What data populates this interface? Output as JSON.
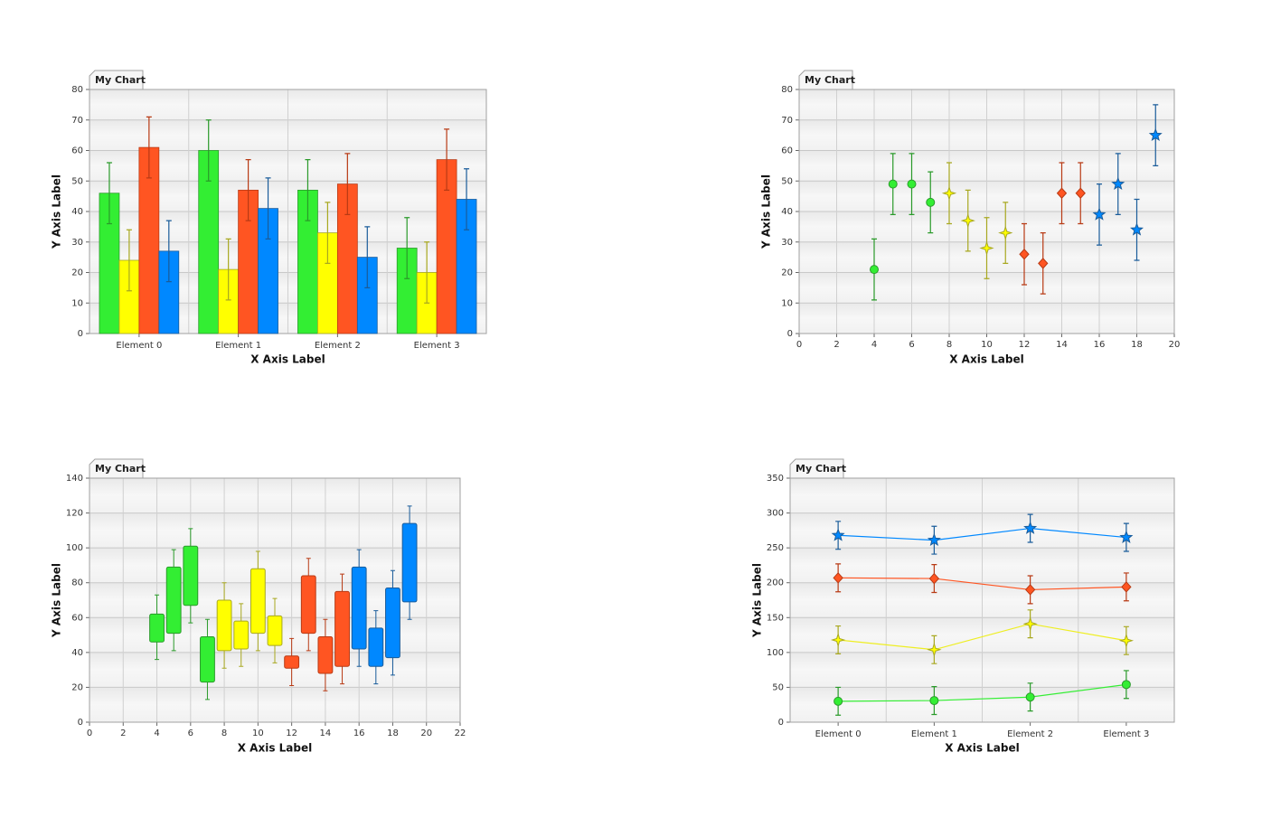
{
  "chart_data": [
    {
      "type": "bar",
      "title": "My Chart",
      "x_label": "X Axis Label",
      "y_label": "Y Axis Label",
      "categories": [
        "Element 0",
        "Element 1",
        "Element 2",
        "Element 3"
      ],
      "ylim": [
        0,
        80
      ],
      "yticks": [
        0,
        10,
        20,
        30,
        40,
        50,
        60,
        70,
        80
      ],
      "grid": true,
      "series": [
        {
          "color": "#33ee33",
          "edge_color": "#2a9a2a",
          "values": [
            46,
            60,
            47,
            28
          ],
          "errors": [
            10,
            10,
            10,
            10
          ]
        },
        {
          "color": "#ffff00",
          "edge_color": "#a8a820",
          "values": [
            24,
            21,
            33,
            20
          ],
          "errors": [
            10,
            10,
            10,
            10
          ]
        },
        {
          "color": "#ff5522",
          "edge_color": "#b83a14",
          "values": [
            61,
            47,
            49,
            57
          ],
          "errors": [
            10,
            10,
            10,
            10
          ]
        },
        {
          "color": "#0088ff",
          "edge_color": "#1a5c9a",
          "values": [
            27,
            41,
            25,
            44
          ],
          "errors": [
            10,
            10,
            10,
            10
          ]
        }
      ]
    },
    {
      "type": "scatter",
      "title": "My Chart",
      "x_label": "X Axis Label",
      "y_label": "Y Axis Label",
      "xlim": [
        0,
        20
      ],
      "xticks": [
        0,
        2,
        4,
        6,
        8,
        10,
        12,
        14,
        16,
        18,
        20
      ],
      "ylim": [
        0,
        80
      ],
      "yticks": [
        0,
        10,
        20,
        30,
        40,
        50,
        60,
        70,
        80
      ],
      "grid": true,
      "series": [
        {
          "color": "#33ee33",
          "edge_color": "#2a9a2a",
          "marker": "circle",
          "x": [
            4,
            5,
            6,
            7
          ],
          "values": [
            21,
            49,
            49,
            43
          ],
          "errors": [
            10,
            10,
            10,
            10
          ]
        },
        {
          "color": "#ffff00",
          "edge_color": "#a8a820",
          "marker": "star4",
          "x": [
            8,
            9,
            10,
            11
          ],
          "values": [
            46,
            37,
            28,
            33
          ],
          "errors": [
            10,
            10,
            10,
            10
          ]
        },
        {
          "color": "#ff5522",
          "edge_color": "#b83a14",
          "marker": "diamond",
          "x": [
            12,
            13,
            14,
            15
          ],
          "values": [
            26,
            23,
            46,
            46
          ],
          "errors": [
            10,
            10,
            10,
            10
          ]
        },
        {
          "color": "#0088ff",
          "edge_color": "#1a5c9a",
          "marker": "star5",
          "x": [
            16,
            17,
            18,
            19
          ],
          "values": [
            39,
            49,
            34,
            65
          ],
          "errors": [
            10,
            10,
            10,
            10
          ]
        }
      ]
    },
    {
      "type": "candlestick",
      "title": "My Chart",
      "x_label": "X Axis Label",
      "y_label": "Y Axis Label",
      "xlim": [
        0,
        22
      ],
      "xticks": [
        0,
        2,
        4,
        6,
        8,
        10,
        12,
        14,
        16,
        18,
        20,
        22
      ],
      "ylim": [
        0,
        140
      ],
      "yticks": [
        0,
        20,
        40,
        60,
        80,
        100,
        120,
        140
      ],
      "grid": true,
      "series": [
        {
          "color": "#33ee33",
          "edge_color": "#2a9a2a",
          "x": [
            4,
            5,
            6,
            7
          ],
          "low": [
            36,
            41,
            57,
            13
          ],
          "box_low": [
            46,
            51,
            67,
            23
          ],
          "box_high": [
            62,
            89,
            101,
            49
          ],
          "high": [
            73,
            99,
            111,
            59
          ]
        },
        {
          "color": "#ffff00",
          "edge_color": "#a8a820",
          "x": [
            8,
            9,
            10,
            11
          ],
          "low": [
            31,
            32,
            41,
            34
          ],
          "box_low": [
            41,
            42,
            51,
            44
          ],
          "box_high": [
            70,
            58,
            88,
            61
          ],
          "high": [
            80,
            68,
            98,
            71
          ]
        },
        {
          "color": "#ff5522",
          "edge_color": "#b83a14",
          "x": [
            12,
            13,
            14,
            15
          ],
          "low": [
            21,
            41,
            18,
            22
          ],
          "box_low": [
            31,
            51,
            28,
            32
          ],
          "box_high": [
            38,
            84,
            49,
            75
          ],
          "high": [
            48,
            94,
            59,
            85
          ]
        },
        {
          "color": "#0088ff",
          "edge_color": "#1a5c9a",
          "x": [
            16,
            17,
            18,
            19
          ],
          "low": [
            32,
            22,
            27,
            59
          ],
          "box_low": [
            42,
            32,
            37,
            69
          ],
          "box_high": [
            89,
            54,
            77,
            114
          ],
          "high": [
            99,
            64,
            87,
            124
          ]
        }
      ]
    },
    {
      "type": "line",
      "title": "My Chart",
      "x_label": "X Axis Label",
      "y_label": "Y Axis Label",
      "categories": [
        "Element 0",
        "Element 1",
        "Element 2",
        "Element 3"
      ],
      "ylim": [
        0,
        350
      ],
      "yticks": [
        0,
        50,
        100,
        150,
        200,
        250,
        300,
        350
      ],
      "grid": true,
      "series": [
        {
          "color": "#33ee33",
          "edge_color": "#2a9a2a",
          "marker": "circle",
          "values": [
            30,
            31,
            36,
            54
          ],
          "errors": [
            20,
            20,
            20,
            20
          ]
        },
        {
          "color": "#ffff00",
          "edge_color": "#a8a820",
          "marker": "star4",
          "values": [
            118,
            104,
            141,
            117
          ],
          "errors": [
            20,
            20,
            20,
            20
          ]
        },
        {
          "color": "#ff5522",
          "edge_color": "#b83a14",
          "marker": "diamond",
          "values": [
            207,
            206,
            190,
            194
          ],
          "errors": [
            20,
            20,
            20,
            20
          ]
        },
        {
          "color": "#0088ff",
          "edge_color": "#1a5c9a",
          "marker": "star5",
          "values": [
            268,
            261,
            278,
            265
          ],
          "errors": [
            20,
            20,
            20,
            20
          ]
        }
      ]
    }
  ]
}
